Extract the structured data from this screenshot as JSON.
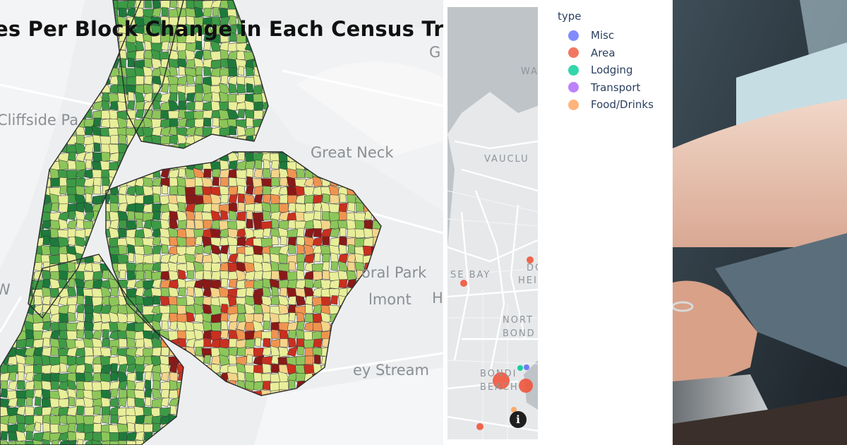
{
  "choropleth": {
    "title": "es Per Block Change in Each Census Tr",
    "labels": {
      "cliffside": "Cliffside Pa",
      "great_neck": "Great Neck",
      "floral_park": "oral Park",
      "elmont": "lmont",
      "valley_stream": "ey Stream",
      "g_edge": "G",
      "h_edge": "H",
      "w_edge": "W"
    },
    "colors": {
      "dark_green": "#1e7a3a",
      "green": "#3d9a45",
      "light_green": "#8cc65a",
      "pale_yellow": "#e8ee9a",
      "tan": "#f4d48a",
      "orange": "#ef9450",
      "red": "#c9301f",
      "dark_red": "#8a1a18"
    }
  },
  "scatter_map": {
    "street_labels": {
      "wa": "WA",
      "vaucluse": "VAUCLU",
      "rose_bay": "SE BAY",
      "dover_1": "DO",
      "dover_2": "HEI",
      "north_bondi_1": "NORT",
      "north_bondi_2": "BOND",
      "bondi_beach_1": "BONDI",
      "bondi_beach_2": "BEACH"
    },
    "info_button": "i",
    "legend": {
      "title": "type",
      "items": [
        {
          "label": "Misc",
          "color": "#636efa"
        },
        {
          "label": "Area",
          "color": "#ef553b"
        },
        {
          "label": "Lodging",
          "color": "#00cc96"
        },
        {
          "label": "Transport",
          "color": "#ab63fa"
        },
        {
          "label": "Food/Drinks",
          "color": "#ffa15a"
        }
      ]
    }
  }
}
